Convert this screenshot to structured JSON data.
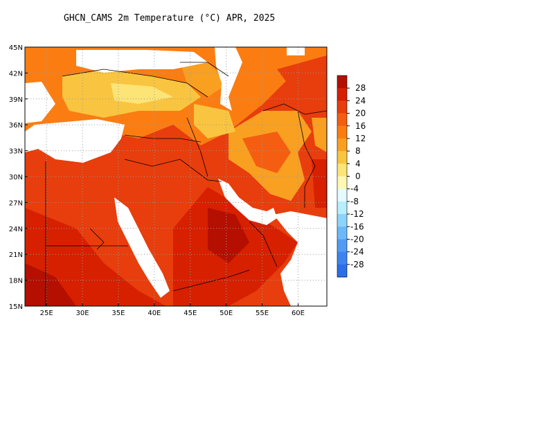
{
  "title": "GHCN_CAMS 2m Temperature (°C) APR, 2025",
  "map": {
    "lon_range": [
      22,
      64
    ],
    "lat_range": [
      15,
      45
    ],
    "x_ticks": [
      "25E",
      "30E",
      "35E",
      "40E",
      "45E",
      "50E",
      "55E",
      "60E"
    ],
    "x_tick_values": [
      25,
      30,
      35,
      40,
      45,
      50,
      55,
      60
    ],
    "y_ticks": [
      "15N",
      "18N",
      "21N",
      "24N",
      "27N",
      "30N",
      "33N",
      "36N",
      "39N",
      "42N",
      "45N"
    ],
    "y_tick_values": [
      15,
      18,
      21,
      24,
      27,
      30,
      33,
      36,
      39,
      42,
      45
    ]
  },
  "colorbar": {
    "labels": [
      "28",
      "24",
      "20",
      "16",
      "12",
      "8",
      "4",
      "0",
      "-4",
      "-8",
      "-12",
      "-16",
      "-20",
      "-24",
      "-28"
    ],
    "colors": [
      "#b40f00",
      "#d72000",
      "#e83d0c",
      "#f55e10",
      "#fb7d12",
      "#f9a021",
      "#f9c540",
      "#fde477",
      "#fff8b4",
      "#e4fbff",
      "#b8eefd",
      "#8cd4fb",
      "#6cb9fa",
      "#509cf6",
      "#3c84f1",
      "#2c6ee8"
    ]
  }
}
